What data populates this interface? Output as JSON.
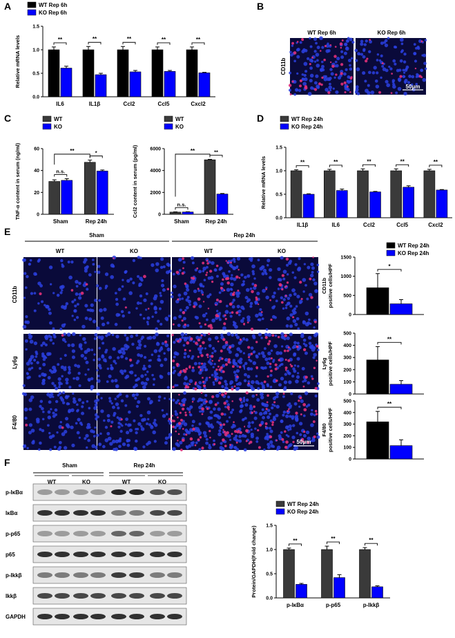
{
  "colors": {
    "wt": "#000000",
    "wt_grey": "#3a3a3a",
    "ko": "#0000ff",
    "micro_bg": "#0a0a3a"
  },
  "panels": {
    "A": "A",
    "B": "B",
    "C": "C",
    "D": "D",
    "E": "E",
    "F": "F"
  },
  "panel_b": {
    "wt": "WT Rep 6h",
    "ko": "KO Rep 6h",
    "stain": "CD11b",
    "scale": "50μm"
  },
  "panel_e": {
    "sham": "Sham",
    "rep": "Rep 24h",
    "cols": [
      "WT",
      "KO",
      "WT",
      "KO"
    ],
    "rows": [
      "CD11b",
      "Ly6g",
      "F4/80"
    ],
    "scale": "50μm"
  },
  "panel_f": {
    "sham": "Sham",
    "rep": "Rep 24h",
    "cols": [
      "WT",
      "KO",
      "WT",
      "KO"
    ],
    "rows": [
      "p-IκBα",
      "IκBα",
      "p-p65",
      "p65",
      "p-Ikkβ",
      "Ikkβ",
      "GAPDH"
    ]
  },
  "chart_data": [
    {
      "id": "A",
      "type": "bar",
      "categories": [
        "IL6",
        "IL1β",
        "Ccl2",
        "Ccl5",
        "Cxcl2"
      ],
      "series": [
        {
          "name": "WT Rep 6h",
          "values": [
            1.0,
            1.0,
            1.0,
            1.0,
            1.0
          ],
          "err": [
            0.06,
            0.07,
            0.07,
            0.06,
            0.06
          ]
        },
        {
          "name": "KO Rep 6h",
          "values": [
            0.61,
            0.47,
            0.53,
            0.54,
            0.51
          ],
          "err": [
            0.04,
            0.03,
            0.03,
            0.02,
            0.01
          ]
        }
      ],
      "ylabel": "Relative mRNA levels",
      "ylim": [
        0,
        1.5
      ],
      "yticks": [
        0,
        0.5,
        1.0,
        1.5
      ],
      "ytick_labels": [
        "0.0",
        "0.5",
        "1.0",
        "1.5"
      ],
      "sig": [
        "**",
        "**",
        "**",
        "**",
        "**"
      ],
      "legend": "top-left"
    },
    {
      "id": "C1",
      "type": "bar",
      "categories": [
        "Sham",
        "Rep 24h"
      ],
      "series": [
        {
          "name": "WT",
          "values": [
            30,
            47.5
          ],
          "err": [
            1.5,
            2
          ]
        },
        {
          "name": "KO",
          "values": [
            31,
            39.5
          ],
          "err": [
            1.5,
            1
          ]
        }
      ],
      "ylabel": "TNF-α content in serum (ng/ml)",
      "ylim": [
        0,
        60
      ],
      "yticks": [
        0,
        20,
        40,
        60
      ],
      "ytick_labels": [
        "0",
        "20",
        "40",
        "60"
      ],
      "sig_within": [
        "n.s.",
        "*"
      ],
      "sig_between": "**",
      "legend": "top-left"
    },
    {
      "id": "C2",
      "type": "bar",
      "categories": [
        "Sham",
        "Rep 24h"
      ],
      "series": [
        {
          "name": "WT",
          "values": [
            200,
            4980
          ],
          "err": [
            20,
            40
          ]
        },
        {
          "name": "KO",
          "values": [
            210,
            1850
          ],
          "err": [
            20,
            50
          ]
        }
      ],
      "ylabel": "Ccl2 content in serum (pg/ml)",
      "ylim": [
        0,
        6000
      ],
      "yticks": [
        0,
        2000,
        4000,
        6000
      ],
      "ytick_labels": [
        "0",
        "2000",
        "4000",
        "6000"
      ],
      "sig_within": [
        "n.s.",
        "**"
      ],
      "sig_between": "**",
      "legend": "top-left"
    },
    {
      "id": "D",
      "type": "bar",
      "categories": [
        "IL1β",
        "IL6",
        "Ccl2",
        "Ccl5",
        "Cxcl2"
      ],
      "series": [
        {
          "name": "WT Rep 24h",
          "values": [
            1.0,
            1.0,
            1.0,
            1.0,
            1.0
          ],
          "err": [
            0.02,
            0.03,
            0.04,
            0.04,
            0.03
          ]
        },
        {
          "name": "KO Rep 24h",
          "values": [
            0.5,
            0.58,
            0.55,
            0.65,
            0.59
          ],
          "err": [
            0.01,
            0.03,
            0.01,
            0.03,
            0.01
          ]
        }
      ],
      "ylabel": "Relative mRNA levels",
      "ylim": [
        0,
        1.5
      ],
      "yticks": [
        0,
        0.5,
        1.0,
        1.5
      ],
      "ytick_labels": [
        "0.0",
        "0.5",
        "1.0",
        "1.5"
      ],
      "sig": [
        "**",
        "**",
        "**",
        "**",
        "**"
      ],
      "legend": "top-left"
    },
    {
      "id": "E1",
      "type": "bar",
      "categories": [
        ""
      ],
      "series": [
        {
          "name": "WT Rep 24h",
          "values": [
            700
          ],
          "err": [
            370
          ]
        },
        {
          "name": "KO Rep 24h",
          "values": [
            280
          ],
          "err": [
            110
          ]
        }
      ],
      "ylabel": "CD11b positive cells/HPF",
      "ylim": [
        0,
        1500
      ],
      "yticks": [
        0,
        500,
        1000,
        1500
      ],
      "ytick_labels": [
        "0",
        "500",
        "1000",
        "1500"
      ],
      "sig": [
        "*"
      ]
    },
    {
      "id": "E2",
      "type": "bar",
      "categories": [
        ""
      ],
      "series": [
        {
          "name": "WT Rep 24h",
          "values": [
            280
          ],
          "err": [
            110
          ]
        },
        {
          "name": "KO Rep 24h",
          "values": [
            80
          ],
          "err": [
            30
          ]
        }
      ],
      "ylabel": "Ly6g positive cells/HPF",
      "ylim": [
        0,
        500
      ],
      "yticks": [
        0,
        100,
        200,
        300,
        400,
        500
      ],
      "ytick_labels": [
        "0",
        "100",
        "200",
        "300",
        "400",
        "500"
      ],
      "sig": [
        "**"
      ]
    },
    {
      "id": "E3",
      "type": "bar",
      "categories": [
        ""
      ],
      "series": [
        {
          "name": "WT Rep 24h",
          "values": [
            320
          ],
          "err": [
            90
          ]
        },
        {
          "name": "KO Rep 24h",
          "values": [
            115
          ],
          "err": [
            50
          ]
        }
      ],
      "ylabel": "F4/80 positive cells/HPF",
      "ylim": [
        0,
        500
      ],
      "yticks": [
        0,
        100,
        200,
        300,
        400,
        500
      ],
      "ytick_labels": [
        "0",
        "100",
        "200",
        "300",
        "400",
        "500"
      ],
      "sig": [
        "**"
      ]
    },
    {
      "id": "F",
      "type": "bar",
      "categories": [
        "p-IκBα",
        "p-p65",
        "p-Ikkβ"
      ],
      "series": [
        {
          "name": "WT Rep 24h",
          "values": [
            1.0,
            1.0,
            1.0
          ],
          "err": [
            0.03,
            0.07,
            0.04
          ]
        },
        {
          "name": "KO Rep 24h",
          "values": [
            0.28,
            0.42,
            0.23
          ],
          "err": [
            0.02,
            0.06,
            0.02
          ]
        }
      ],
      "ylabel": "Protein/GAPDH(Fold change)",
      "ylim": [
        0,
        1.5
      ],
      "yticks": [
        0,
        0.5,
        1.0,
        1.5
      ],
      "ytick_labels": [
        "0.0",
        "0.5",
        "1.0",
        "1.5"
      ],
      "sig": [
        "**",
        "**",
        "**"
      ],
      "legend": "top-left"
    }
  ]
}
